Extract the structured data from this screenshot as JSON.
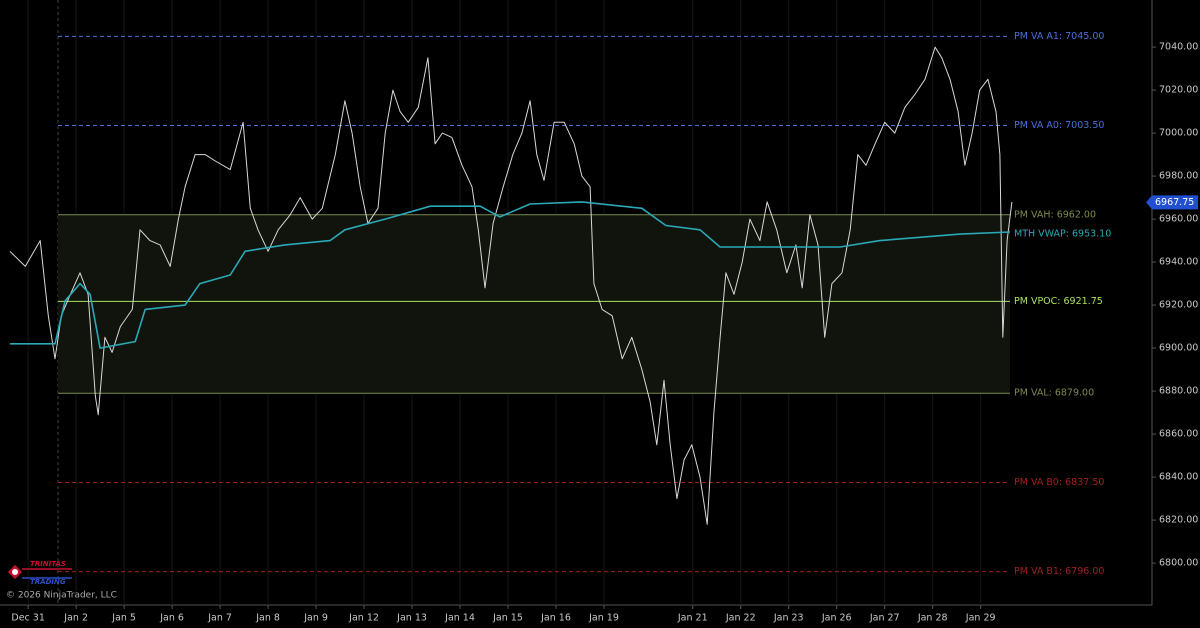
{
  "chart_data": {
    "type": "line",
    "xlim": [
      -0.42,
      23.42
    ],
    "ylim": [
      6780.5,
      7061.9
    ],
    "xticks": [
      {
        "value": 0,
        "label": "Dec 31"
      },
      {
        "value": 1,
        "label": "Jan 2"
      },
      {
        "value": 2,
        "label": "Jan 5"
      },
      {
        "value": 3,
        "label": "Jan 6"
      },
      {
        "value": 4,
        "label": "Jan 7"
      },
      {
        "value": 5,
        "label": "Jan 8"
      },
      {
        "value": 6,
        "label": "Jan 9"
      },
      {
        "value": 7,
        "label": "Jan 12"
      },
      {
        "value": 8,
        "label": "Jan 13"
      },
      {
        "value": 9,
        "label": "Jan 14"
      },
      {
        "value": 10,
        "label": "Jan 15"
      },
      {
        "value": 11,
        "label": "Jan 16"
      },
      {
        "value": 12,
        "label": "Jan 19"
      },
      {
        "value": 13.85,
        "label": "Jan 21"
      },
      {
        "value": 14.85,
        "label": "Jan 22"
      },
      {
        "value": 15.85,
        "label": "Jan 23"
      },
      {
        "value": 16.85,
        "label": "Jan 26"
      },
      {
        "value": 17.85,
        "label": "Jan 27"
      },
      {
        "value": 18.85,
        "label": "Jan 28"
      },
      {
        "value": 19.85,
        "label": "Jan 29"
      }
    ],
    "yticks": [
      {
        "value": 6800,
        "label": "6800.00"
      },
      {
        "value": 6820,
        "label": "6820.00"
      },
      {
        "value": 6840,
        "label": "6840.00"
      },
      {
        "value": 6860,
        "label": "6860.00"
      },
      {
        "value": 6880,
        "label": "6880.00"
      },
      {
        "value": 6900,
        "label": "6900.00"
      },
      {
        "value": 6920,
        "label": "6920.00"
      },
      {
        "value": 6940,
        "label": "6940.00"
      },
      {
        "value": 6960,
        "label": "6960.00"
      },
      {
        "value": 6980,
        "label": "6980.00"
      },
      {
        "value": 7000,
        "label": "7000.00"
      },
      {
        "value": 7020,
        "label": "7020.00"
      },
      {
        "value": 7040,
        "label": "7040.00"
      }
    ],
    "series": [
      {
        "name": "Price",
        "color": "#d8d8d8",
        "width": 1,
        "x": [
          -0.38,
          -0.06,
          0.25,
          0.42,
          0.56,
          0.69,
          0.88,
          1.08,
          1.25,
          1.4,
          1.46,
          1.6,
          1.75,
          1.92,
          2.17,
          2.33,
          2.54,
          2.75,
          2.96,
          3.13,
          3.27,
          3.48,
          3.69,
          3.9,
          4.21,
          4.48,
          4.63,
          4.79,
          5.0,
          5.21,
          5.46,
          5.67,
          5.92,
          6.13,
          6.4,
          6.6,
          6.75,
          6.92,
          7.08,
          7.29,
          7.44,
          7.6,
          7.75,
          7.92,
          8.13,
          8.33,
          8.48,
          8.63,
          8.83,
          9.04,
          9.25,
          9.38,
          9.52,
          9.69,
          9.9,
          10.1,
          10.29,
          10.46,
          10.6,
          10.75,
          10.96,
          11.17,
          11.38,
          11.54,
          11.71,
          11.79,
          11.96,
          12.17,
          12.38,
          12.58,
          12.79,
          12.96,
          13.1,
          13.25,
          13.38,
          13.52,
          13.67,
          13.83,
          14.0,
          14.15,
          14.29,
          14.42,
          14.54,
          14.71,
          14.88,
          15.04,
          15.25,
          15.4,
          15.6,
          15.81,
          16.0,
          16.13,
          16.29,
          16.46,
          16.6,
          16.75,
          16.96,
          17.13,
          17.29,
          17.46,
          17.65,
          17.85,
          18.06,
          18.27,
          18.48,
          18.69,
          18.9,
          19.04,
          19.21,
          19.38,
          19.52,
          19.67,
          19.83,
          20.0,
          20.17,
          20.25,
          20.31,
          20.4,
          20.5
        ],
        "values": [
          6945,
          6938,
          6950,
          6915,
          6895,
          6915,
          6925,
          6935,
          6925,
          6878,
          6869,
          6905,
          6898,
          6910,
          6918,
          6955,
          6950,
          6948,
          6938,
          6960,
          6975,
          6990,
          6990,
          6987,
          6983,
          7005,
          6965,
          6955,
          6945,
          6955,
          6962,
          6970,
          6960,
          6965,
          6990,
          7015,
          7000,
          6975,
          6958,
          6965,
          7000,
          7020,
          7010,
          7005,
          7012,
          7035,
          6995,
          7000,
          6998,
          6985,
          6975,
          6955,
          6928,
          6958,
          6975,
          6990,
          7000,
          7015,
          6990,
          6978,
          7005,
          7005,
          6995,
          6980,
          6975,
          6930,
          6918,
          6915,
          6895,
          6905,
          6890,
          6875,
          6855,
          6885,
          6855,
          6830,
          6848,
          6855,
          6840,
          6818,
          6870,
          6905,
          6935,
          6925,
          6940,
          6960,
          6950,
          6968,
          6955,
          6935,
          6948,
          6928,
          6962,
          6948,
          6905,
          6930,
          6935,
          6955,
          6990,
          6985,
          6995,
          7005,
          7000,
          7012,
          7018,
          7025,
          7040,
          7035,
          7025,
          7010,
          6985,
          7000,
          7020,
          7025,
          7010,
          6990,
          6905,
          6950,
          6968
        ]
      },
      {
        "name": "MTH VWAP",
        "color": "#2aa9b8",
        "width": 1.6,
        "x": [
          -0.38,
          0.56,
          0.77,
          1.08,
          1.29,
          1.5,
          2.23,
          2.44,
          3.27,
          3.58,
          4.21,
          4.52,
          5.35,
          6.29,
          6.6,
          7.44,
          8.38,
          9.42,
          9.83,
          10.46,
          11.54,
          12.79,
          13.29,
          14.0,
          14.42,
          16.92,
          17.75,
          19.42,
          20.46
        ],
        "values": [
          6902,
          6902,
          6922,
          6930,
          6925,
          6900,
          6903,
          6918,
          6920,
          6930,
          6934,
          6945,
          6948,
          6950,
          6955,
          6960,
          6966,
          6966,
          6961,
          6967,
          6968,
          6965,
          6957,
          6955,
          6947,
          6947,
          6950,
          6953,
          6954
        ]
      }
    ],
    "levels": [
      {
        "label": "PM VA A1: 7045.00",
        "value": 7045,
        "color": "#4a6fd6",
        "style": "dashed"
      },
      {
        "label": "PM VA A0: 7003.50",
        "value": 7003.5,
        "color": "#4a6fd6",
        "style": "dashed"
      },
      {
        "label": "PM VAH: 6962.00",
        "value": 6962,
        "color": "#7b8a4c",
        "style": "solid"
      },
      {
        "label": "MTH VWAP: 6953.10",
        "value": 6953.1,
        "color": "#2aa9b8",
        "style": "none"
      },
      {
        "label": "PM VPOC: 6921.75",
        "value": 6921.75,
        "color": "#a8e060",
        "style": "solid"
      },
      {
        "label": "PM VAL: 6879.00",
        "value": 6879,
        "color": "#7b8a4c",
        "style": "solid"
      },
      {
        "label": "PM VA B0: 6837.50",
        "value": 6837.5,
        "color": "#a02020",
        "style": "dashed"
      },
      {
        "label": "PM VA B1: 6796.00",
        "value": 6796,
        "color": "#a02020",
        "style": "dashed"
      }
    ],
    "last_price": {
      "value": 6967.75,
      "label": "6967.75"
    },
    "logo": [
      "TRINITAS",
      "TRADING"
    ],
    "copyright": "© 2026 NinjaTrader, LLC"
  }
}
